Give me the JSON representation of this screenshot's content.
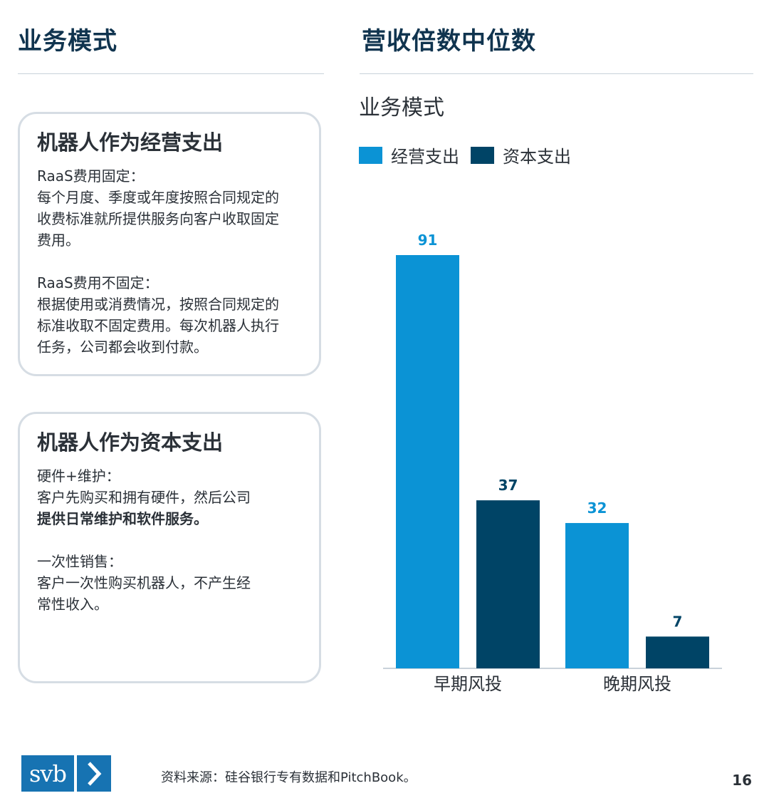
{
  "left": {
    "heading": "业务模式",
    "cards": [
      {
        "title": "机器人作为经营支出",
        "paragraphs": [
          {
            "label": "RaaS费用固定：",
            "lines": [
              "每个月度、季度或年度按照合同规定的",
              "收费标准就所提供服务向客户收取固定",
              "费用。"
            ]
          },
          {
            "label": "RaaS费用不固定：",
            "lines": [
              "根据使用或消费情况，按照合同规定的",
              "标准收取不固定费用。每次机器人执行",
              "任务，公司都会收到付款。"
            ]
          }
        ]
      },
      {
        "title": "机器人作为资本支出",
        "paragraphs": [
          {
            "label": "硬件+维护：",
            "lines": [
              "客户先购买和拥有硬件，然后公司",
              "提供日常维护和软件服务。"
            ]
          },
          {
            "label": "一次性销售：",
            "lines": [
              "客户一次性购买机器人，不产生经",
              "常性收入。"
            ]
          }
        ]
      }
    ]
  },
  "right": {
    "heading": "营收倍数中位数"
  },
  "chart_data": {
    "type": "bar",
    "title": "业务模式",
    "categories": [
      "早期风投",
      "晚期风投"
    ],
    "series": [
      {
        "name": "经营支出",
        "values": [
          91,
          32
        ],
        "color": "#0b93d5"
      },
      {
        "name": "资本支出",
        "values": [
          37,
          7
        ],
        "color": "#004466"
      }
    ],
    "ylim": [
      0,
      91
    ],
    "grid": false,
    "legend": "top-left",
    "data_labels": true
  },
  "footer": {
    "logo_text": "svb",
    "logo_icon": "chevron-right-icon",
    "source": "资料来源：硅谷银行专有数据和PitchBook。",
    "page_number": "16"
  }
}
